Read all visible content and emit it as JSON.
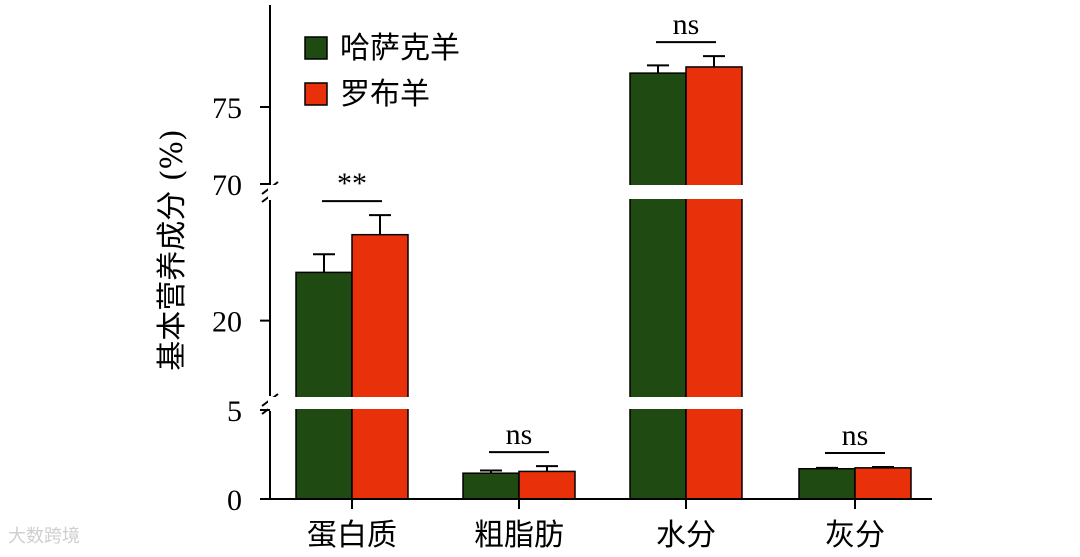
{
  "chart_data": {
    "type": "bar",
    "ylabel": "基本营养成分 (%)",
    "categories": [
      "蛋白质",
      "粗脂肪",
      "水分",
      "灰分"
    ],
    "series": [
      {
        "name": "哈萨克羊",
        "color": "#1f4a12",
        "values": [
          23.2,
          1.45,
          77.2,
          1.7
        ],
        "errors": [
          1.2,
          0.15,
          0.5,
          0.05
        ]
      },
      {
        "name": "罗布羊",
        "color": "#e8300a",
        "values": [
          25.7,
          1.55,
          77.6,
          1.75
        ],
        "errors": [
          1.3,
          0.3,
          0.7,
          0.05
        ]
      }
    ],
    "y_segments": [
      {
        "range": [
          0,
          5
        ],
        "ticks": [
          "0",
          "5"
        ]
      },
      {
        "range": [
          15,
          28
        ],
        "ticks": [
          "20"
        ]
      },
      {
        "range": [
          70,
          80
        ],
        "ticks": [
          "70",
          "75"
        ]
      }
    ],
    "y_tick_labels": [
      "0",
      "5",
      "20",
      "70",
      "75"
    ],
    "significance": [
      "**",
      "ns",
      "ns",
      "ns"
    ],
    "legend_position": "top-left"
  },
  "watermark": "大数跨境"
}
